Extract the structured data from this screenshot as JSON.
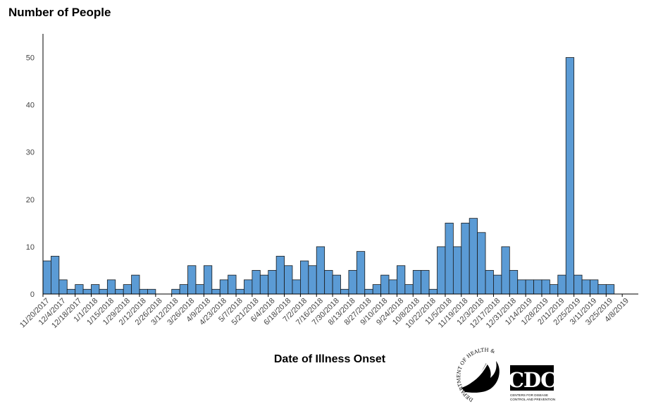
{
  "chart_data": {
    "type": "bar",
    "title": "",
    "ylabel": "Number of People",
    "xlabel": "Date of Illness Onset",
    "ylim": [
      0,
      55
    ],
    "yticks": [
      0,
      10,
      20,
      30,
      40,
      50
    ],
    "grid": false,
    "bar_color": "#5b9bd5",
    "x_tick_labels": [
      "11/20/2017",
      "12/4/2017",
      "12/18/2017",
      "1/1/2018",
      "1/15/2018",
      "1/29/2018",
      "2/12/2018",
      "2/26/2018",
      "3/12/2018",
      "3/26/2018",
      "4/9/2018",
      "4/23/2018",
      "5/7/2018",
      "5/21/2018",
      "6/4/2018",
      "6/18/2018",
      "7/2/2018",
      "7/16/2018",
      "7/30/2018",
      "8/13/2018",
      "8/27/2018",
      "9/10/2018",
      "9/24/2018",
      "10/8/2018",
      "10/22/2018",
      "11/5/2018",
      "11/19/2018",
      "12/3/2018",
      "12/17/2018",
      "12/31/2018",
      "1/14/2019",
      "1/28/2019",
      "2/11/2019",
      "2/25/2019",
      "3/11/2019",
      "3/25/2019",
      "4/8/2019"
    ],
    "categories": [
      "11/20/2017",
      "11/27/2017",
      "12/4/2017",
      "12/11/2017",
      "12/18/2017",
      "12/25/2017",
      "1/1/2018",
      "1/8/2018",
      "1/15/2018",
      "1/22/2018",
      "1/29/2018",
      "2/5/2018",
      "2/12/2018",
      "2/19/2018",
      "2/26/2018",
      "3/5/2018",
      "3/12/2018",
      "3/19/2018",
      "3/26/2018",
      "4/2/2018",
      "4/9/2018",
      "4/16/2018",
      "4/23/2018",
      "4/30/2018",
      "5/7/2018",
      "5/14/2018",
      "5/21/2018",
      "5/28/2018",
      "6/4/2018",
      "6/11/2018",
      "6/18/2018",
      "6/25/2018",
      "7/2/2018",
      "7/9/2018",
      "7/16/2018",
      "7/23/2018",
      "7/30/2018",
      "8/6/2018",
      "8/13/2018",
      "8/20/2018",
      "8/27/2018",
      "9/3/2018",
      "9/10/2018",
      "9/17/2018",
      "9/24/2018",
      "10/1/2018",
      "10/8/2018",
      "10/15/2018",
      "10/22/2018",
      "10/29/2018",
      "11/5/2018",
      "11/12/2018",
      "11/19/2018",
      "11/26/2018",
      "12/3/2018",
      "12/10/2018",
      "12/17/2018",
      "12/24/2018",
      "12/31/2018",
      "1/7/2019",
      "1/14/2019",
      "1/21/2019",
      "1/28/2019",
      "2/4/2019",
      "2/11/2019",
      "2/18/2019",
      "2/25/2019",
      "3/4/2019",
      "3/11/2019",
      "3/18/2019",
      "3/25/2019",
      "4/1/2019",
      "4/8/2019",
      "4/15/2019"
    ],
    "values": [
      7,
      8,
      3,
      1,
      2,
      1,
      2,
      1,
      3,
      1,
      2,
      4,
      1,
      1,
      0,
      0,
      1,
      2,
      6,
      2,
      6,
      1,
      3,
      4,
      1,
      3,
      5,
      4,
      5,
      8,
      6,
      3,
      7,
      6,
      10,
      5,
      4,
      1,
      5,
      9,
      1,
      2,
      4,
      3,
      6,
      2,
      5,
      5,
      1,
      10,
      15,
      10,
      15,
      16,
      13,
      5,
      4,
      10,
      5,
      3,
      3,
      3,
      3,
      2,
      4,
      50,
      4,
      3,
      3,
      2,
      2,
      0,
      0,
      0
    ]
  },
  "logos": {
    "hhs_seal_text": "DEPARTMENT OF HEALTH & HUMAN SERVICES USA",
    "cdc_text": "CDC",
    "cdc_subtext_1": "CENTERS FOR DISEASE",
    "cdc_subtext_2": "CONTROL AND PREVENTION"
  }
}
